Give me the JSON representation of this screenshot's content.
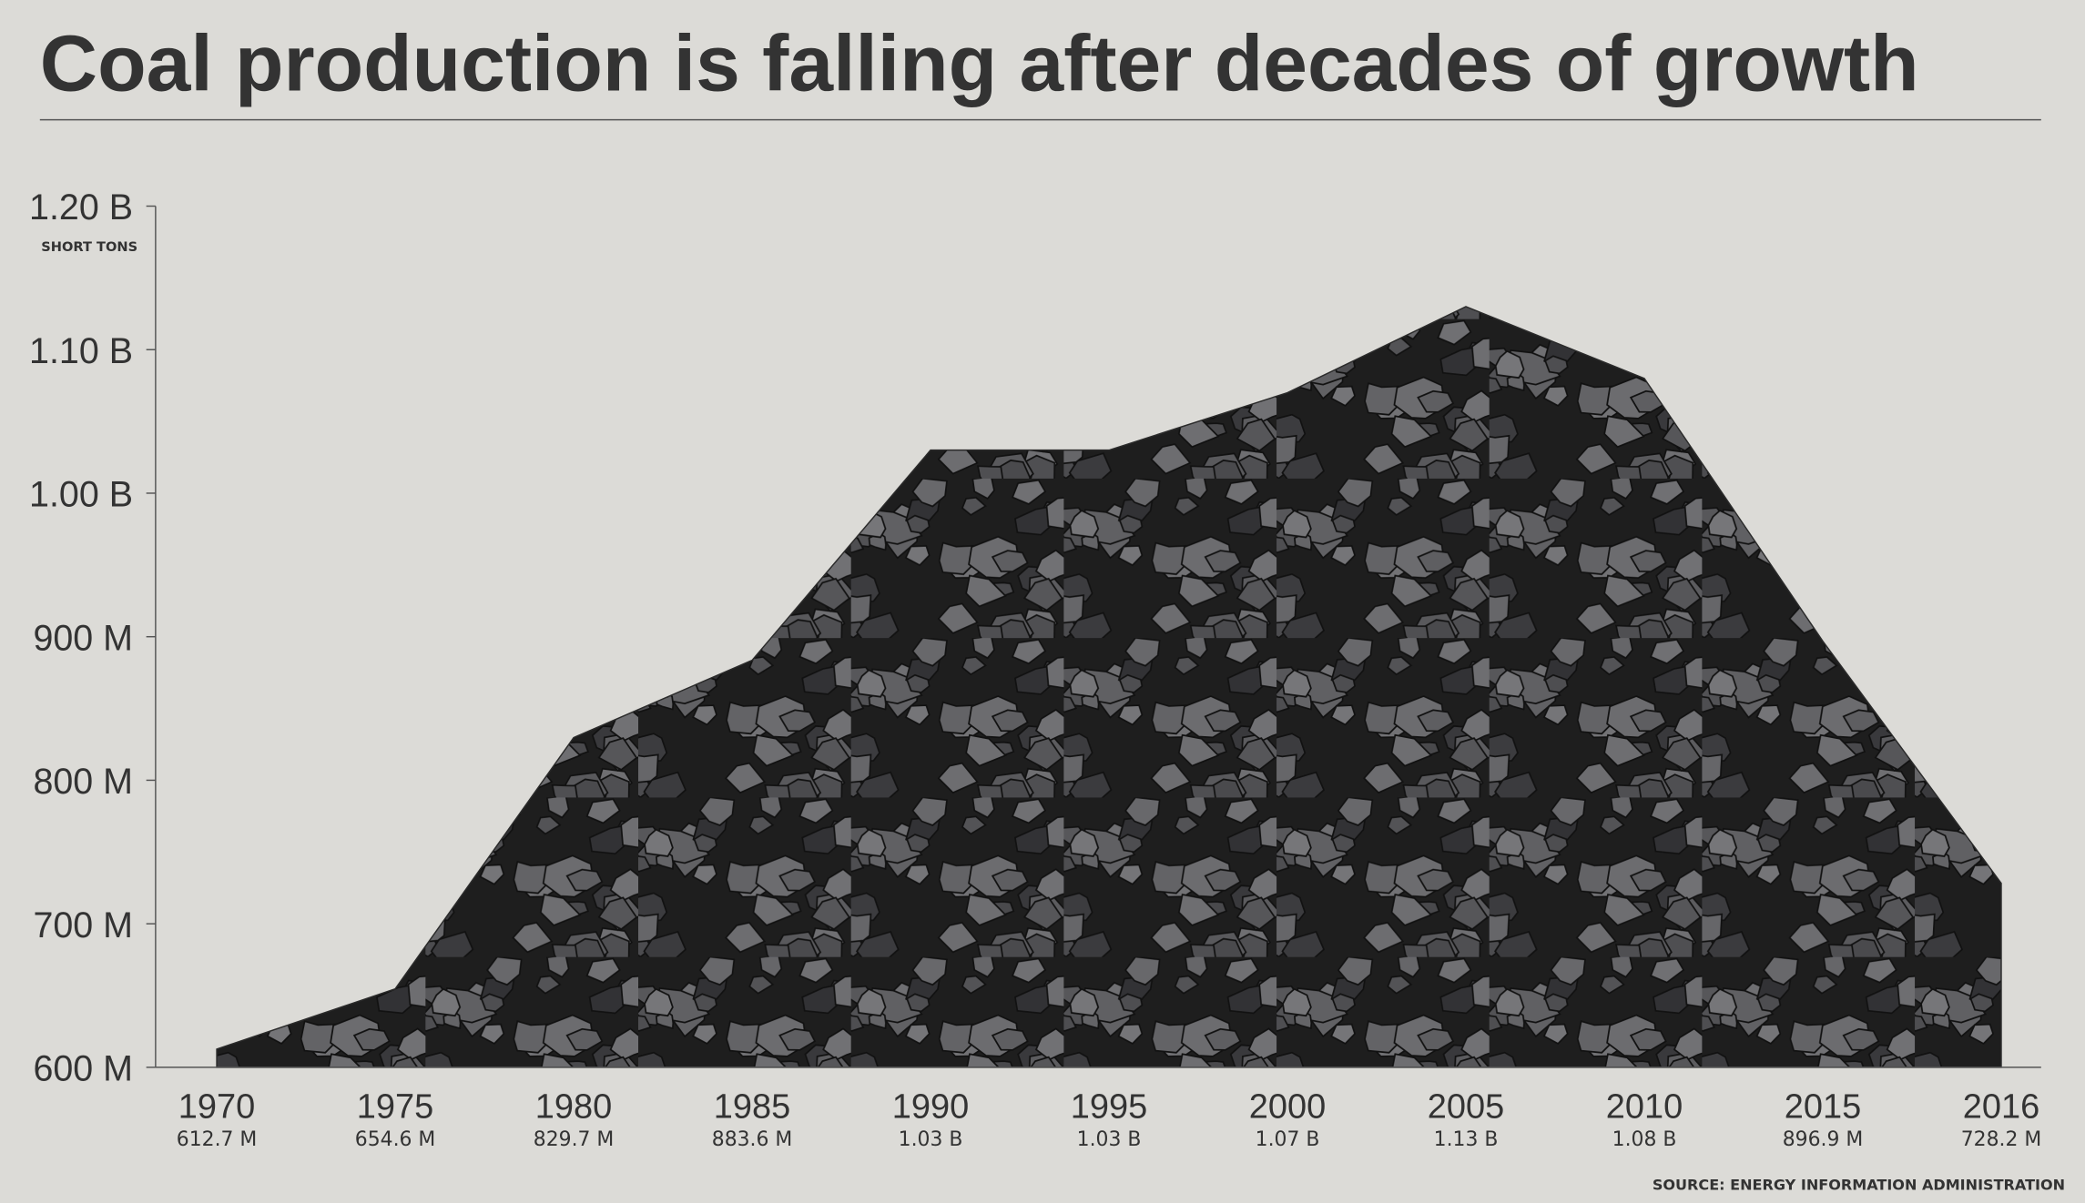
{
  "chart_data": {
    "type": "area",
    "title": "Coal production is falling after decades of growth",
    "y_axis_label": "SHORT TONS",
    "source": "SOURCE: ENERGY INFORMATION ADMINISTRATION",
    "categories": [
      "1970",
      "1975",
      "1980",
      "1985",
      "1990",
      "1995",
      "2000",
      "2005",
      "2010",
      "2015",
      "2016"
    ],
    "values": [
      612700000,
      654600000,
      829700000,
      883600000,
      1030000000,
      1030000000,
      1070000000,
      1130000000,
      1080000000,
      896900000,
      728200000
    ],
    "value_labels": [
      "612.7 M",
      "654.6 M",
      "829.7 M",
      "883.6 M",
      "1.03 B",
      "1.03 B",
      "1.07 B",
      "1.13 B",
      "1.08 B",
      "896.9 M",
      "728.2 M"
    ],
    "color": "#2b2b2b",
    "ylim": [
      600000000,
      1200000000
    ],
    "yticks": [
      {
        "value": 600000000,
        "label": "600 M"
      },
      {
        "value": 700000000,
        "label": "700 M"
      },
      {
        "value": 800000000,
        "label": "800 M"
      },
      {
        "value": 900000000,
        "label": "900 M"
      },
      {
        "value": 1000000000,
        "label": "1.00 B"
      },
      {
        "value": 1100000000,
        "label": "1.10 B"
      },
      {
        "value": 1200000000,
        "label": "1.20 B"
      }
    ]
  }
}
